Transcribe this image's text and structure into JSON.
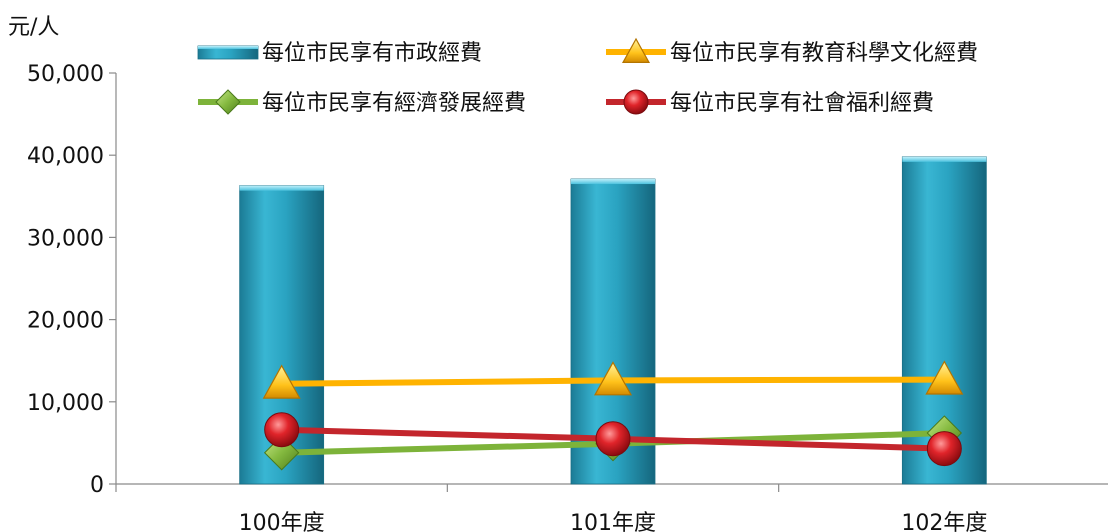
{
  "chart_data": {
    "type": "bar",
    "ylabel": "元/人",
    "ylim": [
      0,
      50000
    ],
    "yticks": [
      0,
      10000,
      20000,
      30000,
      40000,
      50000
    ],
    "ytick_labels": [
      "0",
      "10,000",
      "20,000",
      "30,000",
      "40,000",
      "50,000"
    ],
    "categories": [
      "100年度",
      "101年度",
      "102年度"
    ],
    "grid": false,
    "legend_position": "top",
    "series": [
      {
        "name": "每位市民享有市政經費",
        "type": "bar",
        "color": "#2aa5c3",
        "marker": "bar",
        "values": [
          36300,
          37100,
          39800
        ]
      },
      {
        "name": "每位市民享有教育科學文化經費",
        "type": "line",
        "color": "#ffb300",
        "marker": "triangle",
        "values": [
          12200,
          12600,
          12700
        ]
      },
      {
        "name": "每位市民享有經濟發展經費",
        "type": "line",
        "color": "#7db33a",
        "marker": "diamond",
        "values": [
          3800,
          4900,
          6200
        ]
      },
      {
        "name": "每位市民享有社會福利經費",
        "type": "line",
        "color": "#c3262c",
        "marker": "circle",
        "values": [
          6600,
          5500,
          4300
        ]
      }
    ]
  }
}
